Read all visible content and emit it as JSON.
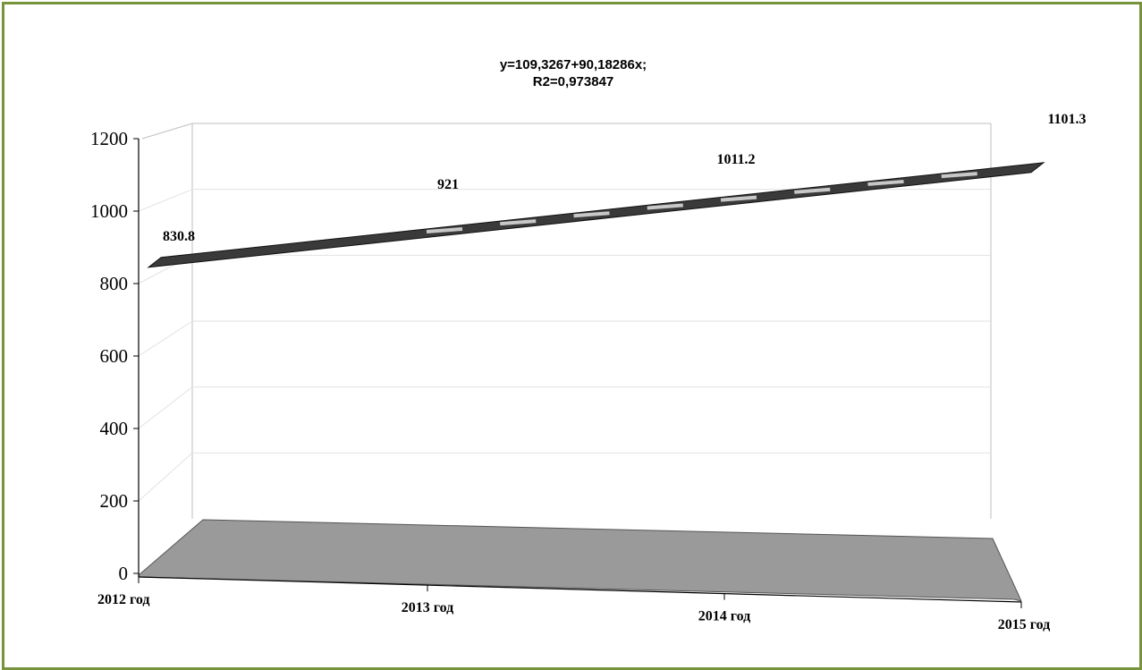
{
  "chart_data": {
    "type": "line",
    "title_lines": [
      "y=109,3267+90,18286x;",
      "R2=0,973847"
    ],
    "categories": [
      "2012 год",
      "2013 год",
      "2014 год",
      "2015 год"
    ],
    "series": [
      {
        "values": [
          830.8,
          921,
          1011.2,
          1101.3
        ]
      }
    ],
    "data_labels": [
      "830.8",
      "921",
      "1011.2",
      "1101.3"
    ],
    "y_ticks": [
      "0",
      "200",
      "400",
      "600",
      "800",
      "1000",
      "1200"
    ],
    "ylim": [
      0,
      1200
    ],
    "three_d": true,
    "grid": true,
    "legend": "none"
  },
  "colors": {
    "frame_border": "#77933c",
    "floor_fill": "#9a9a9a",
    "ribbon_fill": "#3a3a3a",
    "ribbon_band": "#c8c8c8",
    "axis_line": "#000000",
    "wall_line": "#bfbfbf"
  }
}
